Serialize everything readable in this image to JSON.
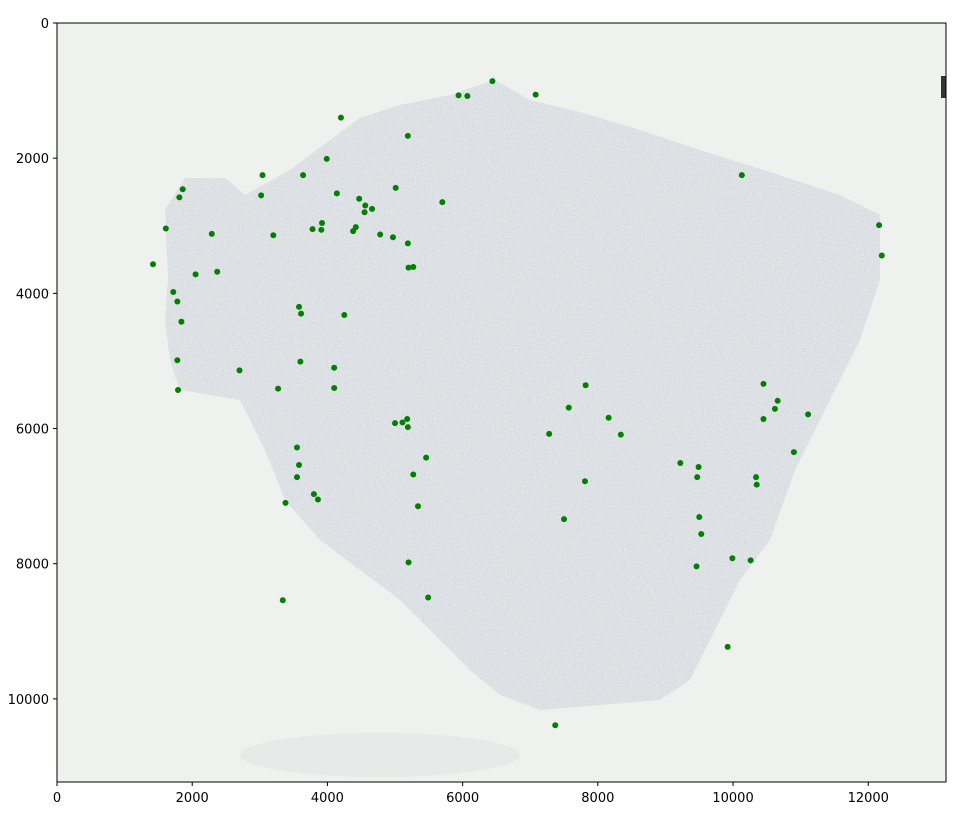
{
  "chart_data": {
    "type": "scatter",
    "title": "",
    "xlabel": "",
    "ylabel": "",
    "xlim": [
      0,
      13150
    ],
    "ylim": [
      11230,
      0
    ],
    "y_inverted": true,
    "grid": false,
    "legend": "none",
    "background": "tissue section image",
    "colors": {
      "point": "#008000",
      "background": "#eef1ee",
      "tissue": "#c9cfdc",
      "frame": "#000000"
    },
    "x_ticks": [
      {
        "value": 0,
        "label": "0"
      },
      {
        "value": 2000,
        "label": "2000"
      },
      {
        "value": 4000,
        "label": "4000"
      },
      {
        "value": 6000,
        "label": "6000"
      },
      {
        "value": 8000,
        "label": "8000"
      },
      {
        "value": 10000,
        "label": "10000"
      },
      {
        "value": 12000,
        "label": "12000"
      }
    ],
    "y_ticks": [
      {
        "value": 0,
        "label": "0"
      },
      {
        "value": 2000,
        "label": "2000"
      },
      {
        "value": 4000,
        "label": "4000"
      },
      {
        "value": 6000,
        "label": "6000"
      },
      {
        "value": 8000,
        "label": "8000"
      },
      {
        "value": 10000,
        "label": "10000"
      }
    ],
    "points": [
      {
        "x": 6440,
        "y": 860
      },
      {
        "x": 5940,
        "y": 1070
      },
      {
        "x": 6070,
        "y": 1080
      },
      {
        "x": 7080,
        "y": 1060
      },
      {
        "x": 4200,
        "y": 1400
      },
      {
        "x": 5190,
        "y": 1670
      },
      {
        "x": 3990,
        "y": 2010
      },
      {
        "x": 3040,
        "y": 2250
      },
      {
        "x": 3640,
        "y": 2250
      },
      {
        "x": 10130,
        "y": 2250
      },
      {
        "x": 1860,
        "y": 2460
      },
      {
        "x": 5010,
        "y": 2440
      },
      {
        "x": 1810,
        "y": 2580
      },
      {
        "x": 3020,
        "y": 2550
      },
      {
        "x": 4140,
        "y": 2520
      },
      {
        "x": 4470,
        "y": 2600
      },
      {
        "x": 5700,
        "y": 2650
      },
      {
        "x": 4560,
        "y": 2700
      },
      {
        "x": 4660,
        "y": 2750
      },
      {
        "x": 4550,
        "y": 2800
      },
      {
        "x": 3920,
        "y": 2960
      },
      {
        "x": 3780,
        "y": 3050
      },
      {
        "x": 3910,
        "y": 3060
      },
      {
        "x": 4420,
        "y": 3020
      },
      {
        "x": 4380,
        "y": 3080
      },
      {
        "x": 1610,
        "y": 3040
      },
      {
        "x": 2290,
        "y": 3120
      },
      {
        "x": 3200,
        "y": 3140
      },
      {
        "x": 4780,
        "y": 3130
      },
      {
        "x": 4970,
        "y": 3170
      },
      {
        "x": 5190,
        "y": 3260
      },
      {
        "x": 12160,
        "y": 2990
      },
      {
        "x": 12200,
        "y": 3440
      },
      {
        "x": 1420,
        "y": 3570
      },
      {
        "x": 5200,
        "y": 3620
      },
      {
        "x": 5270,
        "y": 3610
      },
      {
        "x": 2050,
        "y": 3720
      },
      {
        "x": 2370,
        "y": 3680
      },
      {
        "x": 1720,
        "y": 3980
      },
      {
        "x": 1780,
        "y": 4120
      },
      {
        "x": 3580,
        "y": 4200
      },
      {
        "x": 3610,
        "y": 4300
      },
      {
        "x": 4250,
        "y": 4320
      },
      {
        "x": 1840,
        "y": 4420
      },
      {
        "x": 3600,
        "y": 5010
      },
      {
        "x": 1780,
        "y": 4990
      },
      {
        "x": 4100,
        "y": 5100
      },
      {
        "x": 2700,
        "y": 5140
      },
      {
        "x": 3270,
        "y": 5410
      },
      {
        "x": 1790,
        "y": 5430
      },
      {
        "x": 4100,
        "y": 5400
      },
      {
        "x": 10450,
        "y": 5340
      },
      {
        "x": 7820,
        "y": 5360
      },
      {
        "x": 10660,
        "y": 5590
      },
      {
        "x": 7570,
        "y": 5690
      },
      {
        "x": 10620,
        "y": 5710
      },
      {
        "x": 11110,
        "y": 5790
      },
      {
        "x": 8160,
        "y": 5840
      },
      {
        "x": 10450,
        "y": 5860
      },
      {
        "x": 5180,
        "y": 5860
      },
      {
        "x": 5000,
        "y": 5920
      },
      {
        "x": 5110,
        "y": 5910
      },
      {
        "x": 5190,
        "y": 5980
      },
      {
        "x": 7280,
        "y": 6080
      },
      {
        "x": 8340,
        "y": 6090
      },
      {
        "x": 3550,
        "y": 6280
      },
      {
        "x": 10900,
        "y": 6350
      },
      {
        "x": 5460,
        "y": 6430
      },
      {
        "x": 3580,
        "y": 6540
      },
      {
        "x": 9220,
        "y": 6510
      },
      {
        "x": 9490,
        "y": 6570
      },
      {
        "x": 5270,
        "y": 6680
      },
      {
        "x": 3550,
        "y": 6720
      },
      {
        "x": 9470,
        "y": 6720
      },
      {
        "x": 10340,
        "y": 6720
      },
      {
        "x": 10350,
        "y": 6830
      },
      {
        "x": 7810,
        "y": 6780
      },
      {
        "x": 3800,
        "y": 6970
      },
      {
        "x": 3860,
        "y": 7050
      },
      {
        "x": 3380,
        "y": 7100
      },
      {
        "x": 5340,
        "y": 7150
      },
      {
        "x": 7500,
        "y": 7340
      },
      {
        "x": 9500,
        "y": 7310
      },
      {
        "x": 9530,
        "y": 7560
      },
      {
        "x": 9990,
        "y": 7920
      },
      {
        "x": 10260,
        "y": 7950
      },
      {
        "x": 5200,
        "y": 7980
      },
      {
        "x": 9460,
        "y": 8040
      },
      {
        "x": 3340,
        "y": 8540
      },
      {
        "x": 5490,
        "y": 8500
      },
      {
        "x": 9920,
        "y": 9230
      },
      {
        "x": 7370,
        "y": 10390
      }
    ]
  }
}
